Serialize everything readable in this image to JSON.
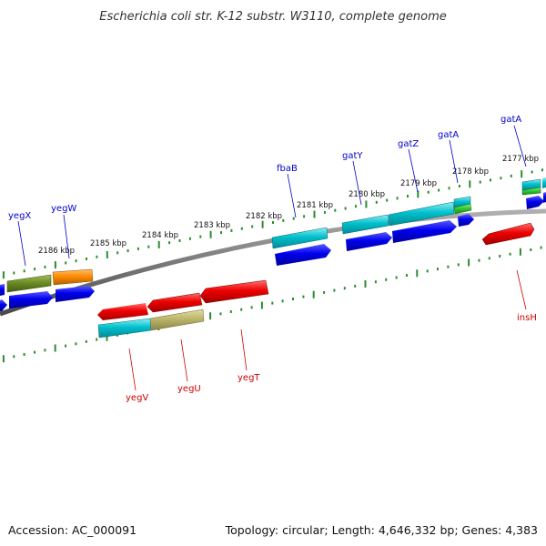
{
  "title": "Escherichia coli str. K-12 substr. W3110, complete genome",
  "footer": {
    "accession": "Accession: AC_000091",
    "summary": "Topology: circular; Length: 4,646,332 bp; Genes: 4,383"
  },
  "scale_labels": [
    "2186 kbp",
    "2185 kbp",
    "2184 kbp",
    "2183 kbp",
    "2182 kbp",
    "2181 kbp",
    "2180 kbp",
    "2179 kbp",
    "2178 kbp",
    "2177 kbp"
  ],
  "gene_labels": {
    "top": [
      "yegX",
      "yegW",
      "fbaB",
      "gatY",
      "gatZ",
      "gatA",
      "gatA"
    ],
    "bottom": [
      "yegV",
      "yegU",
      "yegT",
      "insH"
    ]
  },
  "colors": {
    "backbone": "#808080",
    "ticks": "#2e8b2e",
    "top_label": "#0000cc",
    "bottom_label": "#cc0000",
    "blue_feature": "#0000ff",
    "red_feature": "#ff0000",
    "cyan_feature": "#00b8c8",
    "olive_feature": "#6b8e23",
    "orange_feature": "#ff8c00",
    "khaki_feature": "#bdb76b",
    "green_feature": "#33cc33"
  }
}
